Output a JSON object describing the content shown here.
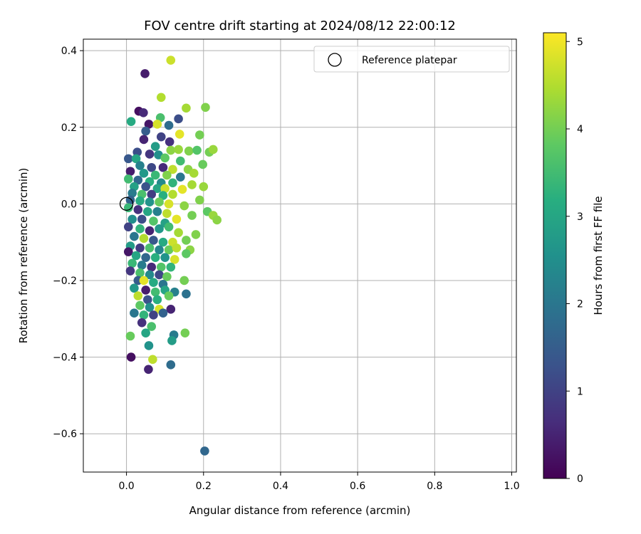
{
  "chart_data": {
    "type": "scatter",
    "title": "FOV centre drift starting at 2024/08/12 22:00:12",
    "xlabel": "Angular distance from reference (arcmin)",
    "ylabel": "Rotation from reference (arcmin)",
    "xlim": [
      -0.112,
      1.012
    ],
    "ylim": [
      -0.7,
      0.43
    ],
    "xticks": [
      0.0,
      0.2,
      0.4,
      0.6,
      0.8,
      1.0
    ],
    "xtick_labels": [
      "0.0",
      "0.2",
      "0.4",
      "0.6",
      "0.8",
      "1.0"
    ],
    "yticks": [
      0.4,
      0.2,
      0.0,
      -0.2,
      -0.4,
      -0.6
    ],
    "ytick_labels": [
      "0.4",
      "0.2",
      "0.0",
      "−0.2",
      "−0.4",
      "−0.6"
    ],
    "grid": true,
    "legend": {
      "position": "top-right",
      "entries": [
        {
          "label": "Reference platepar",
          "marker": "open-circle"
        }
      ]
    },
    "reference_point": {
      "x": 0.0,
      "y": 0.0
    },
    "colorbar": {
      "label": "Hours from first FF file",
      "colormap": "viridis",
      "range": [
        0,
        5.1
      ],
      "ticks": [
        0,
        1,
        2,
        3,
        4,
        5
      ],
      "tick_labels": [
        "0",
        "1",
        "2",
        "3",
        "4",
        "5"
      ]
    },
    "points": [
      {
        "x": 0.115,
        "y": 0.375,
        "c": 4.7
      },
      {
        "x": 0.048,
        "y": 0.34,
        "c": 0.4
      },
      {
        "x": 0.09,
        "y": 0.278,
        "c": 4.5
      },
      {
        "x": 0.205,
        "y": 0.252,
        "c": 4.1
      },
      {
        "x": 0.155,
        "y": 0.25,
        "c": 4.4
      },
      {
        "x": 0.032,
        "y": 0.242,
        "c": 0.2
      },
      {
        "x": 0.044,
        "y": 0.238,
        "c": 0.6
      },
      {
        "x": 0.088,
        "y": 0.225,
        "c": 3.6
      },
      {
        "x": 0.135,
        "y": 0.222,
        "c": 1.2
      },
      {
        "x": 0.012,
        "y": 0.215,
        "c": 3.1
      },
      {
        "x": 0.058,
        "y": 0.208,
        "c": 0.3
      },
      {
        "x": 0.11,
        "y": 0.205,
        "c": 1.8
      },
      {
        "x": 0.08,
        "y": 0.208,
        "c": 4.8
      },
      {
        "x": 0.05,
        "y": 0.19,
        "c": 1.5
      },
      {
        "x": 0.138,
        "y": 0.182,
        "c": 4.9
      },
      {
        "x": 0.19,
        "y": 0.18,
        "c": 4.0
      },
      {
        "x": 0.09,
        "y": 0.175,
        "c": 1.0
      },
      {
        "x": 0.045,
        "y": 0.168,
        "c": 0.5
      },
      {
        "x": 0.112,
        "y": 0.162,
        "c": 0.7
      },
      {
        "x": 0.075,
        "y": 0.15,
        "c": 2.8
      },
      {
        "x": 0.115,
        "y": 0.14,
        "c": 4.2
      },
      {
        "x": 0.135,
        "y": 0.142,
        "c": 4.3
      },
      {
        "x": 0.162,
        "y": 0.138,
        "c": 4.1
      },
      {
        "x": 0.183,
        "y": 0.14,
        "c": 3.7
      },
      {
        "x": 0.215,
        "y": 0.135,
        "c": 4.0
      },
      {
        "x": 0.225,
        "y": 0.142,
        "c": 4.3
      },
      {
        "x": 0.028,
        "y": 0.135,
        "c": 1.2
      },
      {
        "x": 0.06,
        "y": 0.13,
        "c": 0.8
      },
      {
        "x": 0.083,
        "y": 0.128,
        "c": 2.5
      },
      {
        "x": 0.005,
        "y": 0.118,
        "c": 1.4
      },
      {
        "x": 0.025,
        "y": 0.118,
        "c": 3.0
      },
      {
        "x": 0.1,
        "y": 0.12,
        "c": 3.8
      },
      {
        "x": 0.14,
        "y": 0.112,
        "c": 3.5
      },
      {
        "x": 0.198,
        "y": 0.103,
        "c": 3.9
      },
      {
        "x": 0.035,
        "y": 0.1,
        "c": 2.2
      },
      {
        "x": 0.065,
        "y": 0.095,
        "c": 1.1
      },
      {
        "x": 0.095,
        "y": 0.095,
        "c": 0.6
      },
      {
        "x": 0.12,
        "y": 0.09,
        "c": 4.6
      },
      {
        "x": 0.16,
        "y": 0.09,
        "c": 4.2
      },
      {
        "x": 0.175,
        "y": 0.08,
        "c": 4.4
      },
      {
        "x": 0.01,
        "y": 0.085,
        "c": 0.4
      },
      {
        "x": 0.045,
        "y": 0.08,
        "c": 2.7
      },
      {
        "x": 0.075,
        "y": 0.075,
        "c": 3.4
      },
      {
        "x": 0.105,
        "y": 0.075,
        "c": 4.1
      },
      {
        "x": 0.14,
        "y": 0.07,
        "c": 2.0
      },
      {
        "x": 0.005,
        "y": 0.065,
        "c": 3.5
      },
      {
        "x": 0.03,
        "y": 0.062,
        "c": 1.7
      },
      {
        "x": 0.06,
        "y": 0.058,
        "c": 3.2
      },
      {
        "x": 0.09,
        "y": 0.055,
        "c": 2.4
      },
      {
        "x": 0.12,
        "y": 0.055,
        "c": 3.3
      },
      {
        "x": 0.17,
        "y": 0.05,
        "c": 4.4
      },
      {
        "x": 0.02,
        "y": 0.045,
        "c": 2.9
      },
      {
        "x": 0.05,
        "y": 0.045,
        "c": 1.3
      },
      {
        "x": 0.08,
        "y": 0.04,
        "c": 3.0
      },
      {
        "x": 0.1,
        "y": 0.04,
        "c": 4.7
      },
      {
        "x": 0.145,
        "y": 0.038,
        "c": 4.9
      },
      {
        "x": 0.2,
        "y": 0.045,
        "c": 4.3
      },
      {
        "x": 0.015,
        "y": 0.028,
        "c": 2.1
      },
      {
        "x": 0.04,
        "y": 0.025,
        "c": 3.6
      },
      {
        "x": 0.065,
        "y": 0.025,
        "c": 0.9
      },
      {
        "x": 0.095,
        "y": 0.022,
        "c": 3.2
      },
      {
        "x": 0.12,
        "y": 0.025,
        "c": 4.5
      },
      {
        "x": 0.01,
        "y": 0.01,
        "c": 1.6
      },
      {
        "x": 0.035,
        "y": 0.008,
        "c": 3.1
      },
      {
        "x": 0.06,
        "y": 0.005,
        "c": 2.6
      },
      {
        "x": 0.085,
        "y": 0.005,
        "c": 3.9
      },
      {
        "x": 0.11,
        "y": 0.0,
        "c": 4.8
      },
      {
        "x": 0.15,
        "y": -0.005,
        "c": 4.2
      },
      {
        "x": 0.19,
        "y": 0.01,
        "c": 4.1
      },
      {
        "x": 0.21,
        "y": -0.02,
        "c": 3.8
      },
      {
        "x": 0.005,
        "y": -0.01,
        "c": 3.4
      },
      {
        "x": 0.03,
        "y": -0.015,
        "c": 0.7
      },
      {
        "x": 0.055,
        "y": -0.02,
        "c": 3.0
      },
      {
        "x": 0.08,
        "y": -0.02,
        "c": 2.2
      },
      {
        "x": 0.105,
        "y": -0.025,
        "c": 4.6
      },
      {
        "x": 0.17,
        "y": -0.03,
        "c": 4.0
      },
      {
        "x": 0.225,
        "y": -0.03,
        "c": 4.3
      },
      {
        "x": 0.235,
        "y": -0.042,
        "c": 4.2
      },
      {
        "x": 0.015,
        "y": -0.04,
        "c": 2.5
      },
      {
        "x": 0.04,
        "y": -0.04,
        "c": 1.2
      },
      {
        "x": 0.07,
        "y": -0.045,
        "c": 3.7
      },
      {
        "x": 0.1,
        "y": -0.05,
        "c": 2.9
      },
      {
        "x": 0.13,
        "y": -0.04,
        "c": 4.9
      },
      {
        "x": 0.005,
        "y": -0.06,
        "c": 1.0
      },
      {
        "x": 0.035,
        "y": -0.065,
        "c": 3.3
      },
      {
        "x": 0.06,
        "y": -0.07,
        "c": 0.5
      },
      {
        "x": 0.085,
        "y": -0.065,
        "c": 2.7
      },
      {
        "x": 0.11,
        "y": -0.06,
        "c": 3.5
      },
      {
        "x": 0.135,
        "y": -0.075,
        "c": 4.4
      },
      {
        "x": 0.18,
        "y": -0.08,
        "c": 4.1
      },
      {
        "x": 0.02,
        "y": -0.085,
        "c": 2.0
      },
      {
        "x": 0.045,
        "y": -0.09,
        "c": 4.5
      },
      {
        "x": 0.07,
        "y": -0.095,
        "c": 1.4
      },
      {
        "x": 0.095,
        "y": -0.1,
        "c": 3.1
      },
      {
        "x": 0.12,
        "y": -0.1,
        "c": 4.7
      },
      {
        "x": 0.155,
        "y": -0.095,
        "c": 4.0
      },
      {
        "x": 0.01,
        "y": -0.11,
        "c": 2.8
      },
      {
        "x": 0.035,
        "y": -0.115,
        "c": 0.9
      },
      {
        "x": 0.06,
        "y": -0.115,
        "c": 3.6
      },
      {
        "x": 0.085,
        "y": -0.12,
        "c": 2.3
      },
      {
        "x": 0.11,
        "y": -0.12,
        "c": 3.9
      },
      {
        "x": 0.13,
        "y": -0.115,
        "c": 4.6
      },
      {
        "x": 0.165,
        "y": -0.12,
        "c": 4.2
      },
      {
        "x": 0.005,
        "y": -0.125,
        "c": 0.3
      },
      {
        "x": 0.025,
        "y": -0.135,
        "c": 3.0
      },
      {
        "x": 0.05,
        "y": -0.14,
        "c": 1.7
      },
      {
        "x": 0.075,
        "y": -0.14,
        "c": 3.2
      },
      {
        "x": 0.1,
        "y": -0.14,
        "c": 2.6
      },
      {
        "x": 0.125,
        "y": -0.145,
        "c": 4.8
      },
      {
        "x": 0.155,
        "y": -0.13,
        "c": 3.8
      },
      {
        "x": 0.015,
        "y": -0.155,
        "c": 3.4
      },
      {
        "x": 0.04,
        "y": -0.16,
        "c": 2.1
      },
      {
        "x": 0.065,
        "y": -0.165,
        "c": 0.6
      },
      {
        "x": 0.09,
        "y": -0.165,
        "c": 3.7
      },
      {
        "x": 0.115,
        "y": -0.165,
        "c": 3.3
      },
      {
        "x": 0.01,
        "y": -0.175,
        "c": 0.8
      },
      {
        "x": 0.035,
        "y": -0.18,
        "c": 3.6
      },
      {
        "x": 0.06,
        "y": -0.185,
        "c": 2.4
      },
      {
        "x": 0.085,
        "y": -0.185,
        "c": 1.1
      },
      {
        "x": 0.105,
        "y": -0.19,
        "c": 3.9
      },
      {
        "x": 0.03,
        "y": -0.2,
        "c": 1.5
      },
      {
        "x": 0.045,
        "y": -0.2,
        "c": 4.9
      },
      {
        "x": 0.07,
        "y": -0.205,
        "c": 3.1
      },
      {
        "x": 0.095,
        "y": -0.21,
        "c": 2.0
      },
      {
        "x": 0.15,
        "y": -0.2,
        "c": 4.0
      },
      {
        "x": 0.02,
        "y": -0.22,
        "c": 2.7
      },
      {
        "x": 0.05,
        "y": -0.225,
        "c": 0.4
      },
      {
        "x": 0.075,
        "y": -0.23,
        "c": 3.5
      },
      {
        "x": 0.1,
        "y": -0.225,
        "c": 3.0
      },
      {
        "x": 0.125,
        "y": -0.23,
        "c": 2.2
      },
      {
        "x": 0.155,
        "y": -0.235,
        "c": 1.9
      },
      {
        "x": 0.03,
        "y": -0.24,
        "c": 4.6
      },
      {
        "x": 0.055,
        "y": -0.25,
        "c": 1.3
      },
      {
        "x": 0.08,
        "y": -0.25,
        "c": 3.2
      },
      {
        "x": 0.11,
        "y": -0.24,
        "c": 3.9
      },
      {
        "x": 0.035,
        "y": -0.265,
        "c": 3.8
      },
      {
        "x": 0.06,
        "y": -0.27,
        "c": 2.5
      },
      {
        "x": 0.085,
        "y": -0.275,
        "c": 4.8
      },
      {
        "x": 0.115,
        "y": -0.275,
        "c": 0.5
      },
      {
        "x": 0.02,
        "y": -0.285,
        "c": 2.0
      },
      {
        "x": 0.045,
        "y": -0.29,
        "c": 3.3
      },
      {
        "x": 0.07,
        "y": -0.29,
        "c": 1.0
      },
      {
        "x": 0.095,
        "y": -0.285,
        "c": 1.6
      },
      {
        "x": 0.04,
        "y": -0.31,
        "c": 0.7
      },
      {
        "x": 0.065,
        "y": -0.32,
        "c": 3.6
      },
      {
        "x": 0.123,
        "y": -0.342,
        "c": 2.1
      },
      {
        "x": 0.118,
        "y": -0.357,
        "c": 2.8
      },
      {
        "x": 0.05,
        "y": -0.337,
        "c": 3.0
      },
      {
        "x": 0.152,
        "y": -0.337,
        "c": 4.0
      },
      {
        "x": 0.01,
        "y": -0.345,
        "c": 3.9
      },
      {
        "x": 0.058,
        "y": -0.37,
        "c": 2.6
      },
      {
        "x": 0.012,
        "y": -0.4,
        "c": 0.2
      },
      {
        "x": 0.068,
        "y": -0.406,
        "c": 4.6
      },
      {
        "x": 0.115,
        "y": -0.42,
        "c": 1.8
      },
      {
        "x": 0.057,
        "y": -0.432,
        "c": 0.5
      },
      {
        "x": 0.203,
        "y": -0.645,
        "c": 1.7
      }
    ]
  }
}
